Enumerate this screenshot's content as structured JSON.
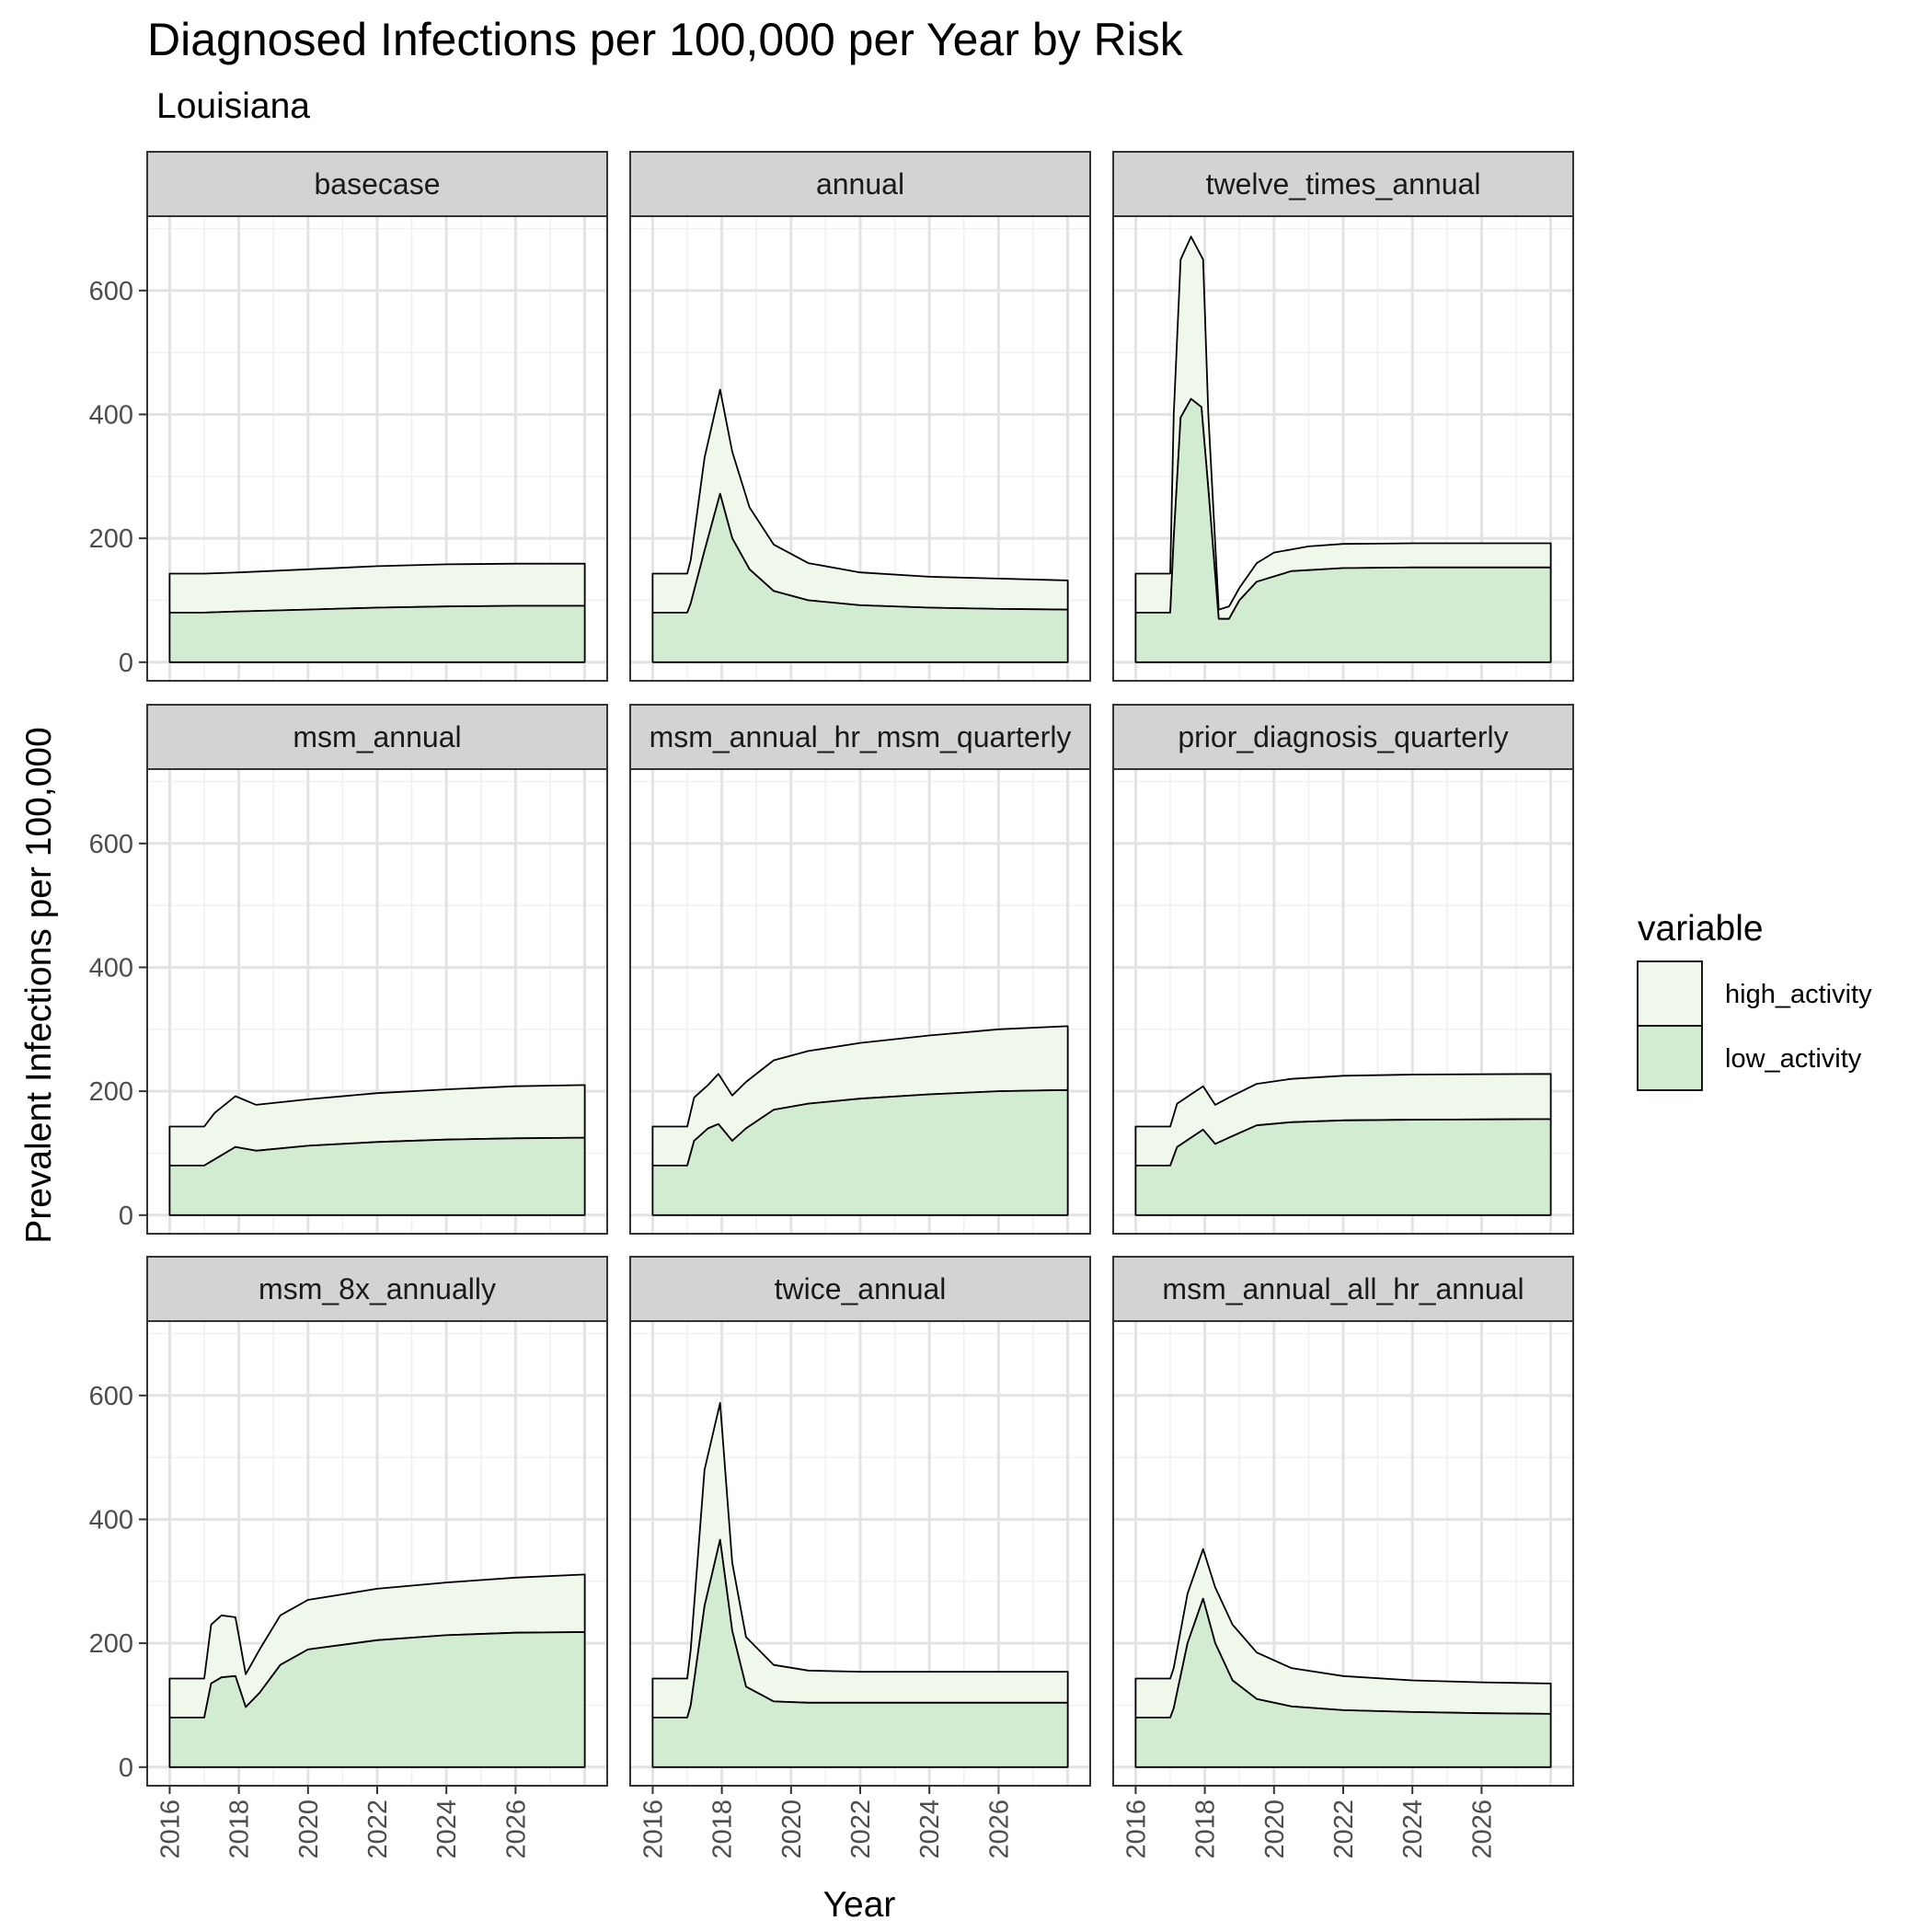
{
  "chart_data": {
    "type": "area",
    "title": "Diagnosed Infections per 100,000 per Year by Risk",
    "subtitle": "Louisiana",
    "xlabel": "Year",
    "ylabel": "Prevalent Infections per 100,000",
    "xlim": [
      2016,
      2028
    ],
    "ylim": [
      0,
      700
    ],
    "x_ticks": [
      "2016",
      "2018",
      "2020",
      "2022",
      "2024",
      "2026"
    ],
    "y_ticks": [
      "0",
      "200",
      "400",
      "600"
    ],
    "grid": true,
    "stacked": true,
    "legend": {
      "title": "variable",
      "position": "right",
      "entries": [
        {
          "label": "high_activity",
          "color": "#f0f8ec"
        },
        {
          "label": "low_activity",
          "color": "#d2ecd2"
        }
      ]
    },
    "colors": {
      "high_activity": "#f0f8ec",
      "low_activity": "#d2ecd2",
      "outline": "#000000",
      "strip": "#d3d3d3"
    },
    "panels": [
      {
        "name": "basecase",
        "low": [
          [
            2016,
            80
          ],
          [
            2017,
            80
          ],
          [
            2018,
            82
          ],
          [
            2020,
            85
          ],
          [
            2022,
            88
          ],
          [
            2024,
            90
          ],
          [
            2026,
            91
          ],
          [
            2028,
            91
          ]
        ],
        "total": [
          [
            2016,
            143
          ],
          [
            2017,
            143
          ],
          [
            2018,
            145
          ],
          [
            2020,
            150
          ],
          [
            2022,
            155
          ],
          [
            2024,
            158
          ],
          [
            2026,
            159
          ],
          [
            2028,
            159
          ]
        ]
      },
      {
        "name": "annual",
        "low": [
          [
            2016,
            80
          ],
          [
            2017,
            80
          ],
          [
            2017.1,
            95
          ],
          [
            2017.5,
            180
          ],
          [
            2017.95,
            272
          ],
          [
            2018.3,
            200
          ],
          [
            2018.8,
            150
          ],
          [
            2019.5,
            115
          ],
          [
            2020.5,
            100
          ],
          [
            2022,
            92
          ],
          [
            2024,
            88
          ],
          [
            2026,
            86
          ],
          [
            2028,
            85
          ]
        ],
        "total": [
          [
            2016,
            143
          ],
          [
            2017,
            143
          ],
          [
            2017.1,
            165
          ],
          [
            2017.5,
            330
          ],
          [
            2017.95,
            440
          ],
          [
            2018.3,
            340
          ],
          [
            2018.8,
            250
          ],
          [
            2019.5,
            190
          ],
          [
            2020.5,
            160
          ],
          [
            2022,
            145
          ],
          [
            2024,
            138
          ],
          [
            2026,
            135
          ],
          [
            2028,
            132
          ]
        ]
      },
      {
        "name": "twelve_times_annual",
        "low": [
          [
            2016,
            80
          ],
          [
            2017,
            80
          ],
          [
            2017.1,
            200
          ],
          [
            2017.3,
            395
          ],
          [
            2017.6,
            425
          ],
          [
            2017.9,
            412
          ],
          [
            2018.1,
            280
          ],
          [
            2018.4,
            70
          ],
          [
            2018.7,
            70
          ],
          [
            2019,
            100
          ],
          [
            2019.5,
            130
          ],
          [
            2020.5,
            147
          ],
          [
            2022,
            152
          ],
          [
            2024,
            153
          ],
          [
            2028,
            153
          ]
        ],
        "total": [
          [
            2016,
            143
          ],
          [
            2017,
            143
          ],
          [
            2017.1,
            400
          ],
          [
            2017.3,
            650
          ],
          [
            2017.6,
            687
          ],
          [
            2017.95,
            650
          ],
          [
            2018.1,
            400
          ],
          [
            2018.4,
            85
          ],
          [
            2018.7,
            90
          ],
          [
            2019,
            120
          ],
          [
            2019.5,
            160
          ],
          [
            2020,
            177
          ],
          [
            2021,
            187
          ],
          [
            2022,
            191
          ],
          [
            2024,
            192
          ],
          [
            2028,
            192
          ]
        ]
      },
      {
        "name": "msm_annual",
        "low": [
          [
            2016,
            80
          ],
          [
            2017,
            80
          ],
          [
            2017.3,
            90
          ],
          [
            2017.9,
            110
          ],
          [
            2018.5,
            104
          ],
          [
            2020,
            112
          ],
          [
            2022,
            118
          ],
          [
            2024,
            122
          ],
          [
            2026,
            124
          ],
          [
            2028,
            125
          ]
        ],
        "total": [
          [
            2016,
            143
          ],
          [
            2017,
            143
          ],
          [
            2017.3,
            165
          ],
          [
            2017.9,
            192
          ],
          [
            2018.5,
            178
          ],
          [
            2020,
            187
          ],
          [
            2022,
            197
          ],
          [
            2024,
            203
          ],
          [
            2026,
            208
          ],
          [
            2028,
            210
          ]
        ]
      },
      {
        "name": "msm_annual_hr_msm_quarterly",
        "low": [
          [
            2016,
            80
          ],
          [
            2017,
            80
          ],
          [
            2017.2,
            120
          ],
          [
            2017.6,
            140
          ],
          [
            2017.9,
            147
          ],
          [
            2018.3,
            120
          ],
          [
            2018.7,
            140
          ],
          [
            2019.5,
            170
          ],
          [
            2020.5,
            180
          ],
          [
            2022,
            188
          ],
          [
            2024,
            195
          ],
          [
            2026,
            200
          ],
          [
            2028,
            202
          ]
        ],
        "total": [
          [
            2016,
            143
          ],
          [
            2017,
            143
          ],
          [
            2017.2,
            190
          ],
          [
            2017.6,
            210
          ],
          [
            2017.9,
            228
          ],
          [
            2018.3,
            193
          ],
          [
            2018.7,
            215
          ],
          [
            2019.5,
            250
          ],
          [
            2020.5,
            265
          ],
          [
            2022,
            278
          ],
          [
            2024,
            290
          ],
          [
            2026,
            300
          ],
          [
            2028,
            305
          ]
        ]
      },
      {
        "name": "prior_diagnosis_quarterly",
        "low": [
          [
            2016,
            80
          ],
          [
            2017,
            80
          ],
          [
            2017.2,
            110
          ],
          [
            2017.6,
            125
          ],
          [
            2017.95,
            138
          ],
          [
            2018.3,
            115
          ],
          [
            2018.7,
            125
          ],
          [
            2019.5,
            145
          ],
          [
            2020.5,
            150
          ],
          [
            2022,
            153
          ],
          [
            2024,
            154
          ],
          [
            2028,
            155
          ]
        ],
        "total": [
          [
            2016,
            143
          ],
          [
            2017,
            143
          ],
          [
            2017.2,
            180
          ],
          [
            2017.6,
            195
          ],
          [
            2017.95,
            208
          ],
          [
            2018.3,
            178
          ],
          [
            2018.7,
            190
          ],
          [
            2019.5,
            212
          ],
          [
            2020.5,
            220
          ],
          [
            2022,
            225
          ],
          [
            2024,
            227
          ],
          [
            2028,
            228
          ]
        ]
      },
      {
        "name": "msm_8x_annually",
        "low": [
          [
            2016,
            80
          ],
          [
            2017,
            80
          ],
          [
            2017.2,
            135
          ],
          [
            2017.5,
            145
          ],
          [
            2017.9,
            147
          ],
          [
            2018.2,
            97
          ],
          [
            2018.6,
            120
          ],
          [
            2019.2,
            165
          ],
          [
            2020,
            190
          ],
          [
            2022,
            205
          ],
          [
            2024,
            213
          ],
          [
            2026,
            217
          ],
          [
            2028,
            218
          ]
        ],
        "total": [
          [
            2016,
            143
          ],
          [
            2017,
            143
          ],
          [
            2017.2,
            230
          ],
          [
            2017.5,
            245
          ],
          [
            2017.9,
            242
          ],
          [
            2018.2,
            150
          ],
          [
            2018.6,
            190
          ],
          [
            2019.2,
            245
          ],
          [
            2020,
            270
          ],
          [
            2022,
            288
          ],
          [
            2024,
            298
          ],
          [
            2026,
            306
          ],
          [
            2028,
            311
          ]
        ]
      },
      {
        "name": "twice_annual",
        "low": [
          [
            2016,
            80
          ],
          [
            2017,
            80
          ],
          [
            2017.1,
            100
          ],
          [
            2017.5,
            260
          ],
          [
            2017.95,
            367
          ],
          [
            2018.3,
            220
          ],
          [
            2018.7,
            130
          ],
          [
            2019.5,
            106
          ],
          [
            2020.5,
            104
          ],
          [
            2022,
            104
          ],
          [
            2028,
            104
          ]
        ],
        "total": [
          [
            2016,
            143
          ],
          [
            2017,
            143
          ],
          [
            2017.1,
            190
          ],
          [
            2017.5,
            480
          ],
          [
            2017.95,
            588
          ],
          [
            2018.3,
            330
          ],
          [
            2018.7,
            210
          ],
          [
            2019.5,
            165
          ],
          [
            2020.5,
            156
          ],
          [
            2022,
            154
          ],
          [
            2028,
            154
          ]
        ]
      },
      {
        "name": "msm_annual_all_hr_annual",
        "low": [
          [
            2016,
            80
          ],
          [
            2017,
            80
          ],
          [
            2017.1,
            95
          ],
          [
            2017.5,
            200
          ],
          [
            2017.95,
            272
          ],
          [
            2018.3,
            200
          ],
          [
            2018.8,
            140
          ],
          [
            2019.5,
            110
          ],
          [
            2020.5,
            98
          ],
          [
            2022,
            92
          ],
          [
            2024,
            89
          ],
          [
            2026,
            87
          ],
          [
            2028,
            86
          ]
        ],
        "total": [
          [
            2016,
            143
          ],
          [
            2017,
            143
          ],
          [
            2017.1,
            160
          ],
          [
            2017.5,
            280
          ],
          [
            2017.95,
            352
          ],
          [
            2018.3,
            290
          ],
          [
            2018.8,
            230
          ],
          [
            2019.5,
            185
          ],
          [
            2020.5,
            160
          ],
          [
            2022,
            147
          ],
          [
            2024,
            140
          ],
          [
            2026,
            137
          ],
          [
            2028,
            135
          ]
        ]
      }
    ]
  }
}
